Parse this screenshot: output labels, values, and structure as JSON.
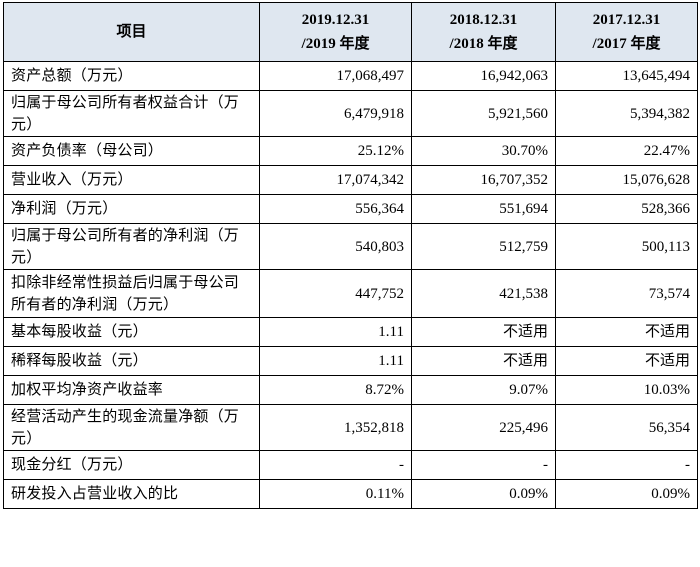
{
  "header": {
    "item": "项目",
    "col1": {
      "date": "2019.12.31",
      "year": "/2019 年度"
    },
    "col2": {
      "date": "2018.12.31",
      "year": "/2018 年度"
    },
    "col3": {
      "date": "2017.12.31",
      "year": "/2017 年度"
    }
  },
  "rows": [
    {
      "label": "资产总额（万元）",
      "v2019": "17,068,497",
      "v2018": "16,942,063",
      "v2017": "13,645,494"
    },
    {
      "label": "归属于母公司所有者权益合计（万元）",
      "v2019": "6,479,918",
      "v2018": "5,921,560",
      "v2017": "5,394,382"
    },
    {
      "label": "资产负债率（母公司）",
      "v2019": "25.12%",
      "v2018": "30.70%",
      "v2017": "22.47%"
    },
    {
      "label": "营业收入（万元）",
      "v2019": "17,074,342",
      "v2018": "16,707,352",
      "v2017": "15,076,628"
    },
    {
      "label": "净利润（万元）",
      "v2019": "556,364",
      "v2018": "551,694",
      "v2017": "528,366"
    },
    {
      "label": "归属于母公司所有者的净利润（万元）",
      "v2019": "540,803",
      "v2018": "512,759",
      "v2017": "500,113"
    },
    {
      "label": "扣除非经常性损益后归属于母公司所有者的净利润（万元）",
      "v2019": "447,752",
      "v2018": "421,538",
      "v2017": "73,574"
    },
    {
      "label": "基本每股收益（元）",
      "v2019": "1.11",
      "v2018": "不适用",
      "v2017": "不适用"
    },
    {
      "label": "稀释每股收益（元）",
      "v2019": "1.11",
      "v2018": "不适用",
      "v2017": "不适用"
    },
    {
      "label": "加权平均净资产收益率",
      "v2019": "8.72%",
      "v2018": "9.07%",
      "v2017": "10.03%"
    },
    {
      "label": "经营活动产生的现金流量净额（万元）",
      "v2019": "1,352,818",
      "v2018": "225,496",
      "v2017": "56,354"
    },
    {
      "label": "现金分红（万元）",
      "v2019": "-",
      "v2018": "-",
      "v2017": "-"
    },
    {
      "label": "研发投入占营业收入的比",
      "v2019": "0.11%",
      "v2018": "0.09%",
      "v2017": "0.09%"
    }
  ]
}
